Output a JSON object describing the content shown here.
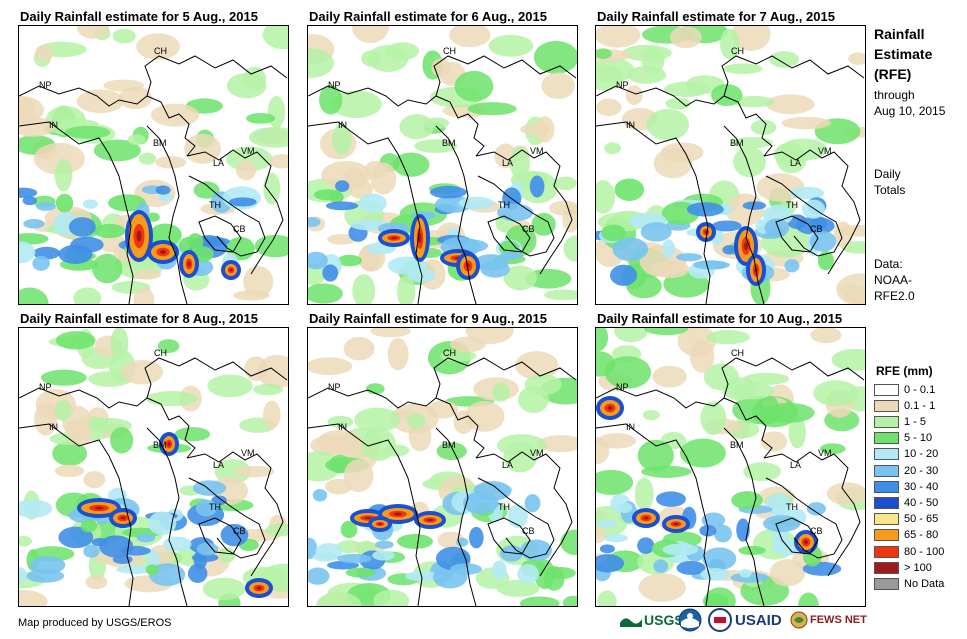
{
  "panels": [
    {
      "title": "Daily Rainfall estimate for 5 Aug., 2015"
    },
    {
      "title": "Daily Rainfall estimate for 6 Aug., 2015"
    },
    {
      "title": "Daily Rainfall estimate for 7 Aug., 2015"
    },
    {
      "title": "Daily Rainfall estimate for 8 Aug., 2015"
    },
    {
      "title": "Daily Rainfall estimate for 9 Aug., 2015"
    },
    {
      "title": "Daily Rainfall estimate for 10 Aug., 2015"
    }
  ],
  "country_labels": [
    "CH",
    "NP",
    "IN",
    "BM",
    "LA",
    "VM",
    "TH",
    "CB"
  ],
  "sidebar": {
    "title_lines": [
      "Rainfall",
      "Estimate",
      "(RFE)"
    ],
    "through": "through",
    "date": "Aug 10, 2015",
    "daily": "Daily",
    "totals": "Totals",
    "data_label": "Data:",
    "data_source_1": "NOAA-",
    "data_source_2": "RFE2.0"
  },
  "legend": {
    "title": "RFE (mm)",
    "items": [
      {
        "label": "0 - 0.1",
        "color": "#ffffff"
      },
      {
        "label": "0.1 - 1",
        "color": "#ecd9b9"
      },
      {
        "label": "1 - 5",
        "color": "#b5f2a6"
      },
      {
        "label": "5 - 10",
        "color": "#6de36b"
      },
      {
        "label": "10 - 20",
        "color": "#b1eaf4"
      },
      {
        "label": "20 - 30",
        "color": "#79c3f0"
      },
      {
        "label": "30 - 40",
        "color": "#3f8fe8"
      },
      {
        "label": "40 - 50",
        "color": "#1a4fd0"
      },
      {
        "label": "50 - 65",
        "color": "#fbe58a"
      },
      {
        "label": "65 - 80",
        "color": "#f89a1c"
      },
      {
        "label": "80 - 100",
        "color": "#f0360f"
      },
      {
        "label": "> 100",
        "color": "#a01a1a"
      },
      {
        "label": "No Data",
        "color": "#9a9a9a"
      }
    ]
  },
  "footer": {
    "credit": "Map produced by USGS/EROS"
  },
  "logos": {
    "usgs": "USGS",
    "usaid": "USAID",
    "fews": "FEWS NET"
  }
}
